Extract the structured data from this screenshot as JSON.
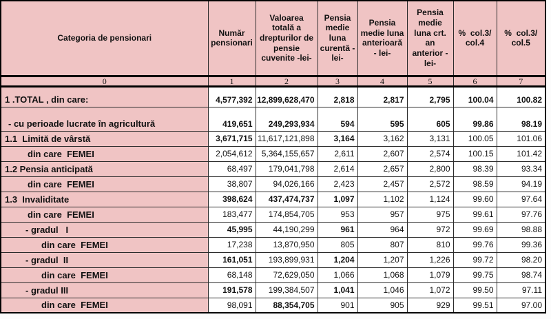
{
  "colors": {
    "header_pink": "#f0c4c4",
    "cell_white": "#ffffff",
    "border_dark": "#000000",
    "text": "#111111"
  },
  "table": {
    "col_headers": [
      "Categoria de pensionari",
      "Număr pensionari",
      "Valoarea totală a drepturilor de pensie cuvenite -lei-",
      "Pensia medie luna curentă -lei-",
      "Pensia medie luna anterioară - lei-",
      "Pensia medie luna crt. an anterior -lei-",
      "%  col.3/ col.4",
      "%  col.3/ col.5"
    ],
    "col_numbers": [
      "0",
      "1",
      "2",
      "3",
      "4",
      "5",
      "6",
      "7"
    ],
    "rows": [
      {
        "label": "1 .TOTAL , din care:",
        "level": 0,
        "values": [
          "4,577,392",
          "12,899,628,470",
          "2,818",
          "2,817",
          "2,795",
          "100.04",
          "100.82"
        ],
        "bold": [
          1,
          1,
          1,
          1,
          1,
          1,
          1
        ]
      },
      {
        "label": "- cu perioade lucrate în agricultură",
        "level": 1,
        "values": [
          "419,651",
          "249,293,934",
          "594",
          "595",
          "605",
          "99.86",
          "98.19"
        ],
        "bold": [
          1,
          1,
          1,
          1,
          1,
          1,
          1
        ]
      },
      {
        "label": "1.1  Limită de vârstă",
        "level": 0,
        "values": [
          "3,671,715",
          "11,617,121,898",
          "3,164",
          "3,162",
          "3,131",
          "100.05",
          "101.06"
        ],
        "bold": [
          1,
          0,
          1,
          0,
          0,
          0,
          0
        ]
      },
      {
        "label": "din care  FEMEI",
        "level": 2,
        "values": [
          "2,054,612",
          "5,364,155,657",
          "2,611",
          "2,607",
          "2,574",
          "100.15",
          "101.42"
        ],
        "bold": [
          0,
          0,
          0,
          0,
          0,
          0,
          0
        ]
      },
      {
        "label": "1.2 Pensia anticipată",
        "level": 0,
        "values": [
          "68,497",
          "179,041,798",
          "2,614",
          "2,657",
          "2,800",
          "98.39",
          "93.34"
        ],
        "bold": [
          0,
          0,
          0,
          0,
          0,
          0,
          0
        ]
      },
      {
        "label": "din care  FEMEI",
        "level": 2,
        "values": [
          "38,807",
          "94,026,166",
          "2,423",
          "2,457",
          "2,572",
          "98.59",
          "94.19"
        ],
        "bold": [
          0,
          0,
          0,
          0,
          0,
          0,
          0
        ]
      },
      {
        "label": "1.3  Invaliditate",
        "level": 0,
        "values": [
          "398,624",
          "437,474,737",
          "1,097",
          "1,102",
          "1,124",
          "99.60",
          "97.64"
        ],
        "bold": [
          1,
          1,
          1,
          0,
          0,
          0,
          0
        ]
      },
      {
        "label": "din care  FEMEI",
        "level": 2,
        "values": [
          "183,477",
          "174,854,705",
          "953",
          "957",
          "975",
          "99.61",
          "97.76"
        ],
        "bold": [
          0,
          0,
          0,
          0,
          0,
          0,
          0
        ]
      },
      {
        "label": "- gradul   I",
        "level": 3,
        "values": [
          "45,995",
          "44,190,299",
          "961",
          "964",
          "972",
          "99.69",
          "98.88"
        ],
        "bold": [
          1,
          0,
          1,
          0,
          0,
          0,
          0
        ]
      },
      {
        "label": "din care  FEMEI",
        "level": 4,
        "values": [
          "17,238",
          "13,870,950",
          "805",
          "807",
          "810",
          "99.76",
          "99.36"
        ],
        "bold": [
          0,
          0,
          0,
          0,
          0,
          0,
          0
        ]
      },
      {
        "label": "- gradul  II",
        "level": 3,
        "values": [
          "161,051",
          "193,899,931",
          "1,204",
          "1,207",
          "1,226",
          "99.72",
          "98.20"
        ],
        "bold": [
          1,
          0,
          1,
          0,
          0,
          0,
          0
        ]
      },
      {
        "label": "din care  FEMEI",
        "level": 4,
        "values": [
          "68,148",
          "72,629,050",
          "1,066",
          "1,068",
          "1,079",
          "99.75",
          "98.74"
        ],
        "bold": [
          0,
          0,
          0,
          0,
          0,
          0,
          0
        ]
      },
      {
        "label": "- gradul III",
        "level": 3,
        "values": [
          "191,578",
          "199,384,507",
          "1,041",
          "1,046",
          "1,072",
          "99.50",
          "97.11"
        ],
        "bold": [
          1,
          0,
          1,
          0,
          0,
          0,
          0
        ]
      },
      {
        "label": "din care  FEMEI",
        "level": 4,
        "values": [
          "98,091",
          "88,354,705",
          "901",
          "905",
          "929",
          "99.51",
          "97.00"
        ],
        "bold": [
          0,
          1,
          0,
          0,
          0,
          0,
          0
        ]
      }
    ]
  }
}
